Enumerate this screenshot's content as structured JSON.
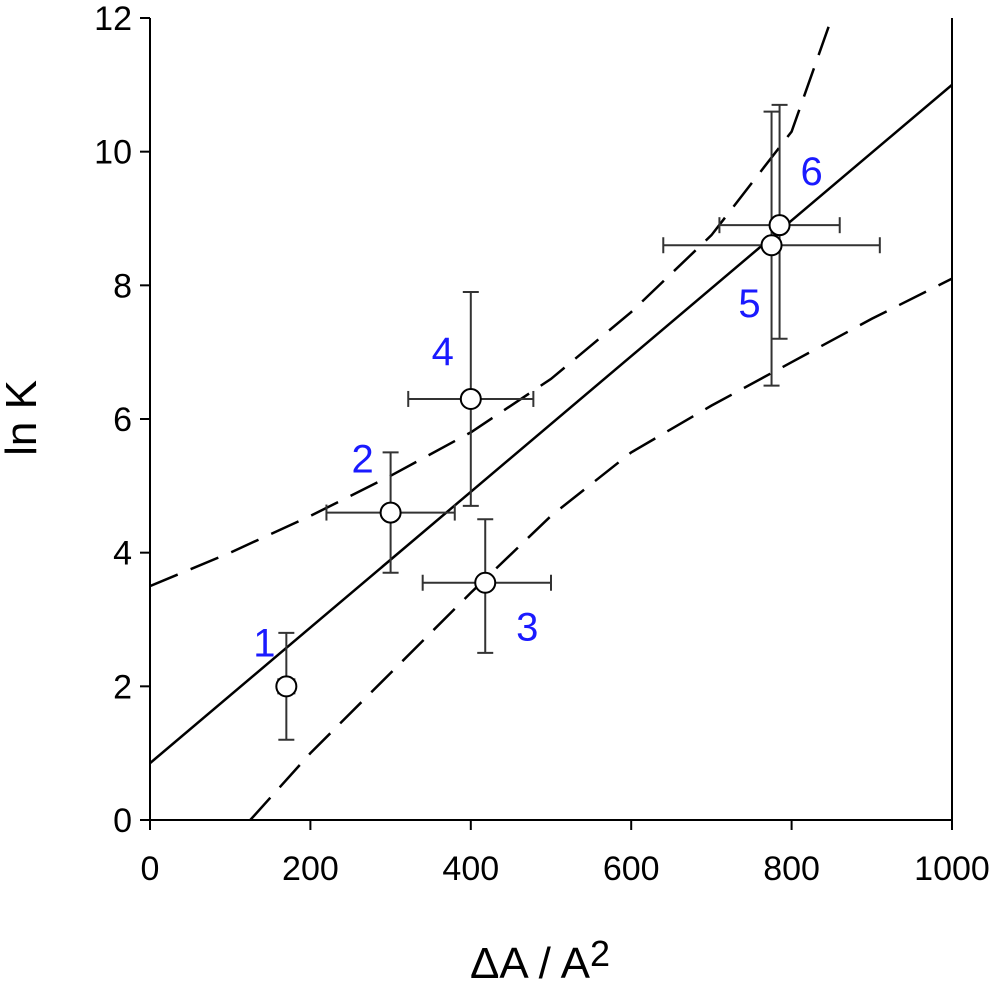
{
  "chart_data": {
    "type": "scatter",
    "title": "",
    "xlabel": "ΔA / A",
    "xlabel_sup": "2",
    "ylabel": "ln K",
    "xlim": [
      0,
      1000
    ],
    "ylim": [
      0,
      12
    ],
    "xticks": [
      0,
      200,
      400,
      600,
      800,
      1000
    ],
    "yticks": [
      0,
      2,
      4,
      6,
      8,
      10,
      12
    ],
    "grid": false,
    "legend": "none",
    "points": [
      {
        "label": "1",
        "x": 170,
        "y": 2.0,
        "xerr": [
          160,
          180
        ],
        "yerr": [
          1.2,
          2.8
        ]
      },
      {
        "label": "2",
        "x": 300,
        "y": 4.6,
        "xerr": [
          220,
          380
        ],
        "yerr": [
          3.7,
          5.5
        ]
      },
      {
        "label": "3",
        "x": 418,
        "y": 3.55,
        "xerr": [
          340,
          500
        ],
        "yerr": [
          2.5,
          4.5
        ]
      },
      {
        "label": "4",
        "x": 400,
        "y": 6.3,
        "xerr": [
          322,
          478
        ],
        "yerr": [
          4.7,
          7.9
        ]
      },
      {
        "label": "5",
        "x": 775,
        "y": 8.6,
        "xerr": [
          640,
          910
        ],
        "yerr": [
          6.5,
          10.6
        ]
      },
      {
        "label": "6",
        "x": 785,
        "y": 8.9,
        "xerr": [
          710,
          860
        ],
        "yerr": [
          7.2,
          10.7
        ]
      }
    ],
    "fit_line": {
      "style": "solid",
      "x": [
        0,
        1000
      ],
      "y": [
        0.85,
        11.0
      ]
    },
    "confidence_bands": [
      {
        "name": "upper",
        "style": "dashed",
        "x": [
          0,
          100,
          200,
          300,
          400,
          500,
          600,
          700,
          800,
          850
        ],
        "y": [
          3.5,
          4.0,
          4.55,
          5.15,
          5.8,
          6.6,
          7.6,
          8.75,
          10.3,
          12.0
        ]
      },
      {
        "name": "lower",
        "style": "dashed",
        "x": [
          125,
          200,
          300,
          400,
          500,
          600,
          700,
          800,
          900,
          1000
        ],
        "y": [
          0.0,
          1.0,
          2.2,
          3.4,
          4.55,
          5.5,
          6.2,
          6.85,
          7.5,
          8.1
        ]
      }
    ],
    "colors": {
      "axes": "#000000",
      "point_labels": "#1a1aff",
      "marker_fill": "#ffffff",
      "error_bar": "#333333"
    }
  }
}
